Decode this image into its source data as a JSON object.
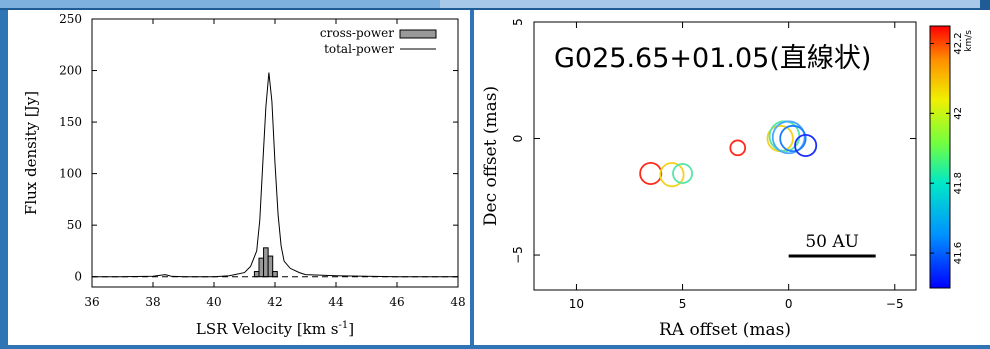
{
  "chart_data": [
    {
      "type": "line",
      "title": "",
      "xlabel": "LSR Velocity [km s-1]",
      "xlabel_main": "LSR Velocity [km s",
      "xlabel_sup": "-1",
      "xlabel_end": "]",
      "ylabel": "Flux density [Jy]",
      "xlim": [
        36,
        48
      ],
      "ylim": [
        -10,
        250
      ],
      "xticks": [
        36,
        38,
        40,
        42,
        44,
        46,
        48
      ],
      "yticks": [
        0,
        50,
        100,
        150,
        200,
        250
      ],
      "legend_placement": "top-right",
      "series": [
        {
          "name": "total-power",
          "style": "line",
          "x": [
            36.0,
            37.0,
            38.0,
            38.4,
            38.6,
            39.0,
            40.0,
            40.5,
            41.0,
            41.2,
            41.4,
            41.5,
            41.6,
            41.7,
            41.8,
            41.9,
            42.0,
            42.1,
            42.2,
            42.3,
            42.5,
            42.8,
            43.0,
            44.0,
            45.0,
            46.0,
            47.0,
            48.0
          ],
          "y": [
            0,
            0,
            0.5,
            2,
            0.5,
            0,
            0,
            1,
            4,
            10,
            25,
            55,
            110,
            165,
            198,
            170,
            110,
            60,
            30,
            15,
            8,
            4,
            2,
            1,
            0.5,
            0,
            0,
            0
          ]
        },
        {
          "name": "cross-power",
          "style": "bar",
          "x": [
            41.4,
            41.55,
            41.7,
            41.85,
            42.0
          ],
          "y": [
            5,
            18,
            28,
            20,
            5
          ]
        }
      ]
    },
    {
      "type": "scatter",
      "title": "G025.65+01.05(直線状)",
      "xlabel": "RA offset (mas)",
      "ylabel": "Dec offset (mas)",
      "xlim": [
        12,
        -6
      ],
      "ylim": [
        -6.5,
        5
      ],
      "xticks": [
        10,
        5,
        0,
        -5
      ],
      "xtick_labels": [
        "10",
        "5",
        "0",
        "−5"
      ],
      "yticks": [
        5,
        0,
        -5
      ],
      "ytick_labels": [
        "5",
        "0",
        "−5"
      ],
      "scale_bar_label": "50 AU",
      "scale_bar_ra": [
        0,
        -4.1
      ],
      "colorbar": {
        "unit": "km/s",
        "range": [
          41.5,
          42.25
        ],
        "ticks": [
          41.6,
          41.8,
          42,
          42.2
        ],
        "tick_labels": [
          "41.6",
          "41.8",
          "42",
          "42.2"
        ]
      },
      "points": [
        {
          "ra": 6.5,
          "dec": -1.5,
          "r": 0.5,
          "color": "#ff2a1a"
        },
        {
          "ra": 5.5,
          "dec": -1.55,
          "r": 0.55,
          "color": "#f4d21c"
        },
        {
          "ra": 5.0,
          "dec": -1.5,
          "r": 0.45,
          "color": "#55e6a8"
        },
        {
          "ra": 2.4,
          "dec": -0.4,
          "r": 0.35,
          "color": "#ff2a1a"
        },
        {
          "ra": 0.4,
          "dec": 0.0,
          "r": 0.6,
          "color": "#f4d21c"
        },
        {
          "ra": 0.2,
          "dec": 0.1,
          "r": 0.7,
          "color": "#55e6a8"
        },
        {
          "ra": 0.0,
          "dec": 0.05,
          "r": 0.75,
          "color": "#4aa8ff"
        },
        {
          "ra": -0.2,
          "dec": 0.0,
          "r": 0.6,
          "color": "#1a7cff"
        },
        {
          "ra": -0.8,
          "dec": -0.3,
          "r": 0.5,
          "color": "#1a2fff"
        }
      ]
    }
  ]
}
